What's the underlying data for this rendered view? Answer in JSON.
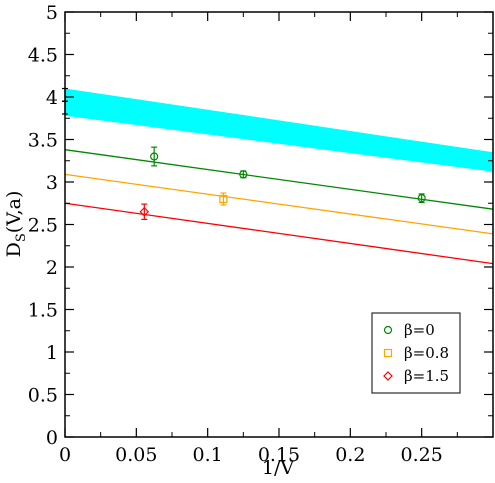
{
  "chart_data": {
    "type": "scatter",
    "xlabel": "1/V",
    "ylabel": "D",
    "ylabel_sub": "S",
    "ylabel_suffix": "(V,a)",
    "xlim": [
      0,
      0.3
    ],
    "ylim": [
      0,
      5
    ],
    "xticks": [
      0,
      0.05,
      0.1,
      0.15,
      0.2,
      0.25
    ],
    "xtick_labels": [
      "0",
      "0.05",
      "0.1",
      "0.15",
      "0.2",
      "0.25"
    ],
    "yticks": [
      0,
      0.5,
      1,
      1.5,
      2,
      2.5,
      3,
      3.5,
      4,
      4.5,
      5
    ],
    "ytick_labels": [
      "0",
      "0.5",
      "1",
      "1.5",
      "2",
      "2.5",
      "3",
      "3.5",
      "4",
      "4.5",
      "5"
    ],
    "grid": false,
    "legend_position": "bottom-right",
    "band": {
      "color": "#00ffff",
      "upper": [
        [
          0,
          4.1
        ],
        [
          0.3,
          3.35
        ]
      ],
      "lower": [
        [
          0,
          3.78
        ],
        [
          0.3,
          3.12
        ]
      ]
    },
    "black_point": {
      "x": 0,
      "y": 3.95,
      "err": 0.15,
      "color": "#000000"
    },
    "series": [
      {
        "name": "β=0",
        "color": "#008800",
        "marker": "circle",
        "points": [
          {
            "x": 0.0625,
            "y": 3.3,
            "err": 0.11
          },
          {
            "x": 0.125,
            "y": 3.09,
            "err": 0.04
          },
          {
            "x": 0.25,
            "y": 2.81,
            "err": 0.05
          }
        ],
        "fit": [
          [
            0,
            3.38
          ],
          [
            0.3,
            2.68
          ]
        ]
      },
      {
        "name": "β=0.8",
        "color": "#ffa500",
        "marker": "square",
        "points": [
          {
            "x": 0.111,
            "y": 2.8,
            "err": 0.07
          }
        ],
        "fit": [
          [
            0,
            3.09
          ],
          [
            0.3,
            2.39
          ]
        ]
      },
      {
        "name": "β=1.5",
        "color": "#ff0000",
        "marker": "diamond",
        "points": [
          {
            "x": 0.0556,
            "y": 2.65,
            "err": 0.09
          }
        ],
        "fit": [
          [
            0,
            2.75
          ],
          [
            0.3,
            2.04
          ]
        ]
      }
    ]
  }
}
